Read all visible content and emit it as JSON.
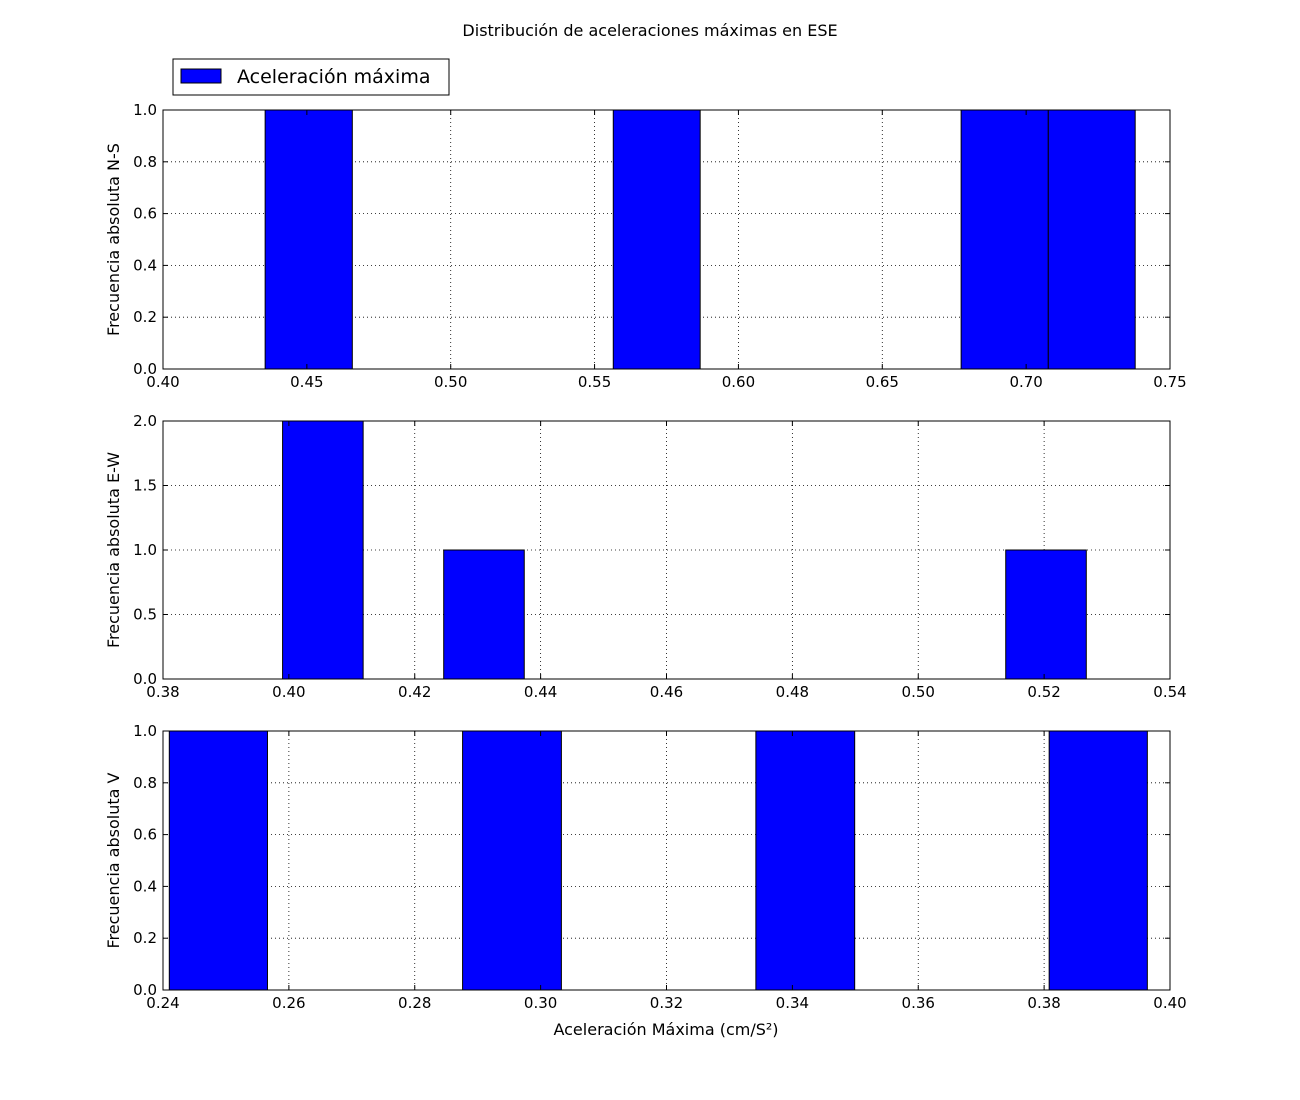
{
  "chart_data": {
    "type": "bar",
    "title": "Distribución de aceleraciones máximas en ESE",
    "xlabel": "Aceleración Máxima (cm/S²)",
    "bar_color": "#0000ff",
    "edge_color": "#000000",
    "grid": true,
    "legend": {
      "label": "Aceleración máxima",
      "placement": "top-left"
    },
    "panels": [
      {
        "ylabel": "Frecuencia absoluta N-S",
        "xlim": [
          0.4,
          0.75
        ],
        "ylim": [
          0,
          1.0
        ],
        "xticks": [
          0.4,
          0.45,
          0.5,
          0.55,
          0.6,
          0.65,
          0.7,
          0.75
        ],
        "xtick_labels": [
          "0.40",
          "0.45",
          "0.50",
          "0.55",
          "0.60",
          "0.65",
          "0.70",
          "0.75"
        ],
        "yticks": [
          0.0,
          0.2,
          0.4,
          0.6,
          0.8,
          1.0
        ],
        "ytick_labels": [
          "0.0",
          "0.2",
          "0.4",
          "0.6",
          "0.8",
          "1.0"
        ],
        "bars": [
          {
            "x0": 0.4355,
            "x1": 0.4658,
            "value": 1
          },
          {
            "x0": 0.5565,
            "x1": 0.5867,
            "value": 1
          },
          {
            "x0": 0.6774,
            "x1": 0.7077,
            "value": 1
          },
          {
            "x0": 0.7077,
            "x1": 0.7379,
            "value": 1
          }
        ]
      },
      {
        "ylabel": "Frecuencia absoluta E-W",
        "xlim": [
          0.38,
          0.54
        ],
        "ylim": [
          0,
          2.0
        ],
        "xticks": [
          0.38,
          0.4,
          0.42,
          0.44,
          0.46,
          0.48,
          0.5,
          0.52,
          0.54
        ],
        "xtick_labels": [
          "0.38",
          "0.40",
          "0.42",
          "0.44",
          "0.46",
          "0.48",
          "0.50",
          "0.52",
          "0.54"
        ],
        "yticks": [
          0.0,
          0.5,
          1.0,
          1.5,
          2.0
        ],
        "ytick_labels": [
          "0.0",
          "0.5",
          "1.0",
          "1.5",
          "2.0"
        ],
        "bars": [
          {
            "x0": 0.399,
            "x1": 0.4118,
            "value": 2
          },
          {
            "x0": 0.4246,
            "x1": 0.4374,
            "value": 1
          },
          {
            "x0": 0.5139,
            "x1": 0.5267,
            "value": 1
          }
        ]
      },
      {
        "ylabel": "Frecuencia absoluta V",
        "xlim": [
          0.24,
          0.4
        ],
        "ylim": [
          0,
          1.0
        ],
        "xticks": [
          0.24,
          0.26,
          0.28,
          0.3,
          0.32,
          0.34,
          0.36,
          0.38,
          0.4
        ],
        "xtick_labels": [
          "0.24",
          "0.26",
          "0.28",
          "0.30",
          "0.32",
          "0.34",
          "0.36",
          "0.38",
          "0.40"
        ],
        "yticks": [
          0.0,
          0.2,
          0.4,
          0.6,
          0.8,
          1.0
        ],
        "ytick_labels": [
          "0.0",
          "0.2",
          "0.4",
          "0.6",
          "0.8",
          "1.0"
        ],
        "bars": [
          {
            "x0": 0.241,
            "x1": 0.2566,
            "value": 1
          },
          {
            "x0": 0.2876,
            "x1": 0.3033,
            "value": 1
          },
          {
            "x0": 0.3342,
            "x1": 0.3499,
            "value": 1
          },
          {
            "x0": 0.3808,
            "x1": 0.3964,
            "value": 1
          }
        ]
      }
    ]
  }
}
